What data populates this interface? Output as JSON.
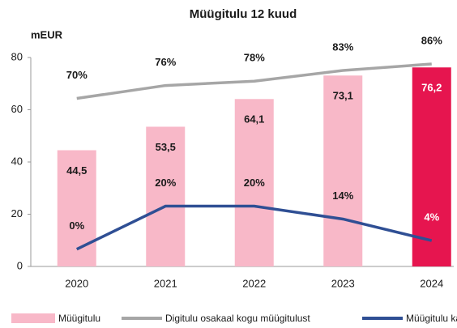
{
  "chart_data": {
    "type": "bar",
    "title": "Müügitulu 12 kuud",
    "ylabel": "mEUR",
    "categories": [
      "2020",
      "2021",
      "2022",
      "2023",
      "2024"
    ],
    "ylim": [
      0,
      80
    ],
    "yticks": [
      0,
      20,
      40,
      60,
      80
    ],
    "y2lim": [
      -8,
      89
    ],
    "series": [
      {
        "name": "Müügitulu",
        "type": "bar",
        "color": "#f8b8c8",
        "colors": [
          "#f8b8c8",
          "#f8b8c8",
          "#f8b8c8",
          "#f8b8c8",
          "#e6154f"
        ],
        "values": [
          44.5,
          53.5,
          64.1,
          73.1,
          76.2
        ],
        "value_labels": [
          "44,5",
          "53,5",
          "64,1",
          "73,1",
          "76,2"
        ]
      },
      {
        "name": "Digitulu osakaal kogu müügitulust",
        "type": "line",
        "axis": "y2",
        "color": "#a6a6a6",
        "values": [
          70,
          76,
          78,
          83,
          86
        ],
        "value_labels": [
          "70%",
          "76%",
          "78%",
          "83%",
          "86%"
        ]
      },
      {
        "name": "Müügitulu kasv",
        "type": "line",
        "axis": "y2",
        "color": "#2f4f94",
        "values": [
          0,
          20,
          20,
          14,
          4
        ],
        "value_labels": [
          "0%",
          "20%",
          "20%",
          "14%",
          "4%"
        ]
      }
    ]
  }
}
